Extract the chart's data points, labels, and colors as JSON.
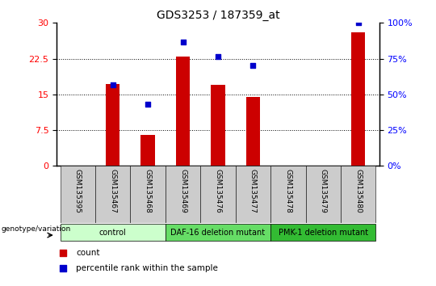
{
  "title": "GDS3253 / 187359_at",
  "samples": [
    "GSM135395",
    "GSM135467",
    "GSM135468",
    "GSM135469",
    "GSM135476",
    "GSM135477",
    "GSM135478",
    "GSM135479",
    "GSM135480"
  ],
  "counts": [
    0.0,
    17.2,
    6.5,
    23.0,
    17.0,
    14.5,
    0.0,
    0.0,
    28.0
  ],
  "percentile_ranks": [
    0.0,
    17.0,
    13.0,
    26.0,
    23.0,
    21.0,
    0.0,
    0.0,
    30.0
  ],
  "ylim_left": [
    0,
    30
  ],
  "ylim_right": [
    0,
    100
  ],
  "yticks_left": [
    0,
    7.5,
    15,
    22.5,
    30
  ],
  "yticks_right": [
    0,
    25,
    50,
    75,
    100
  ],
  "bar_color": "#cc0000",
  "dot_color": "#0000cc",
  "bar_width": 0.4,
  "groups": [
    {
      "label": "control",
      "start": 0,
      "end": 2,
      "color": "#ccffcc"
    },
    {
      "label": "DAF-16 deletion mutant",
      "start": 3,
      "end": 5,
      "color": "#66dd66"
    },
    {
      "label": "PMK-1 deletion mutant",
      "start": 6,
      "end": 8,
      "color": "#33bb33"
    }
  ],
  "label_bg_color": "#cccccc",
  "legend_count_label": "count",
  "legend_percentile_label": "percentile rank within the sample",
  "genotype_label": "genotype/variation"
}
